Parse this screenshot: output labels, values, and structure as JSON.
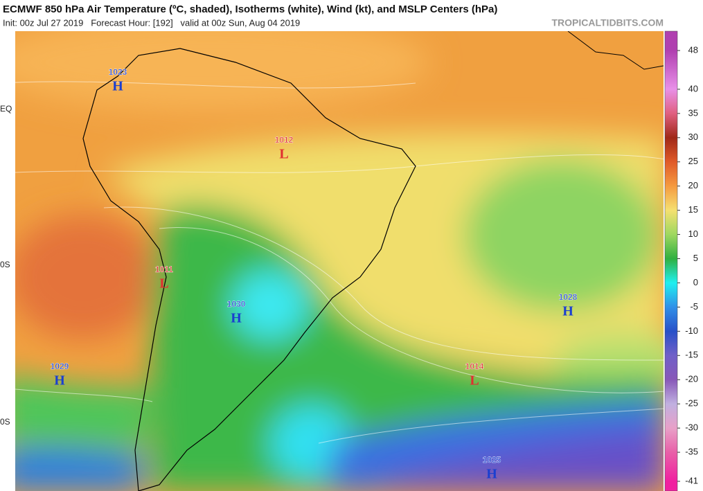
{
  "header": {
    "title": "ECMWF 850 hPa Air Temperature (ºC, shaded), Isotherms (white), Wind (kt), and MSLP Centers (hPa)",
    "subtitle": "Init: 00z Jul 27 2019   Forecast Hour: [192]   valid at 00z Sun, Aug 04 2019",
    "site": "TROPICALTIDBITS.COM"
  },
  "latitude_labels": [
    "EQ",
    "0S",
    "0S"
  ],
  "pressure_centers": [
    {
      "label": "H",
      "value": 1023,
      "color": "#1a3fd0"
    },
    {
      "label": "L",
      "value": 1012,
      "color": "#e03030"
    },
    {
      "label": "L",
      "value": 1011,
      "color": "#e03030"
    },
    {
      "label": "H",
      "value": 1030,
      "color": "#1a3fd0"
    },
    {
      "label": "H",
      "value": 1029,
      "color": "#1a3fd0"
    },
    {
      "label": "H",
      "value": 1028,
      "color": "#1a3fd0"
    },
    {
      "label": "L",
      "value": 1014,
      "color": "#e03030"
    },
    {
      "label": "H",
      "value": 1025,
      "color": "#1a3fd0"
    }
  ],
  "colorbar": {
    "clim": [
      -43,
      52
    ],
    "ticks": [
      48,
      40,
      35,
      30,
      25,
      20,
      15,
      10,
      5,
      0,
      -5,
      -10,
      -15,
      -20,
      -25,
      -30,
      -35,
      -41
    ],
    "colors": [
      "#b040b0",
      "#e890e8",
      "#e06080",
      "#a02818",
      "#e05a28",
      "#f59a40",
      "#f5e070",
      "#9ed860",
      "#30b040",
      "#20f0f0",
      "#3090e8",
      "#2850c8",
      "#7060c8",
      "#8858b8",
      "#c0b0e0",
      "#e8a0c8",
      "#e860a8",
      "#f020a0"
    ]
  }
}
